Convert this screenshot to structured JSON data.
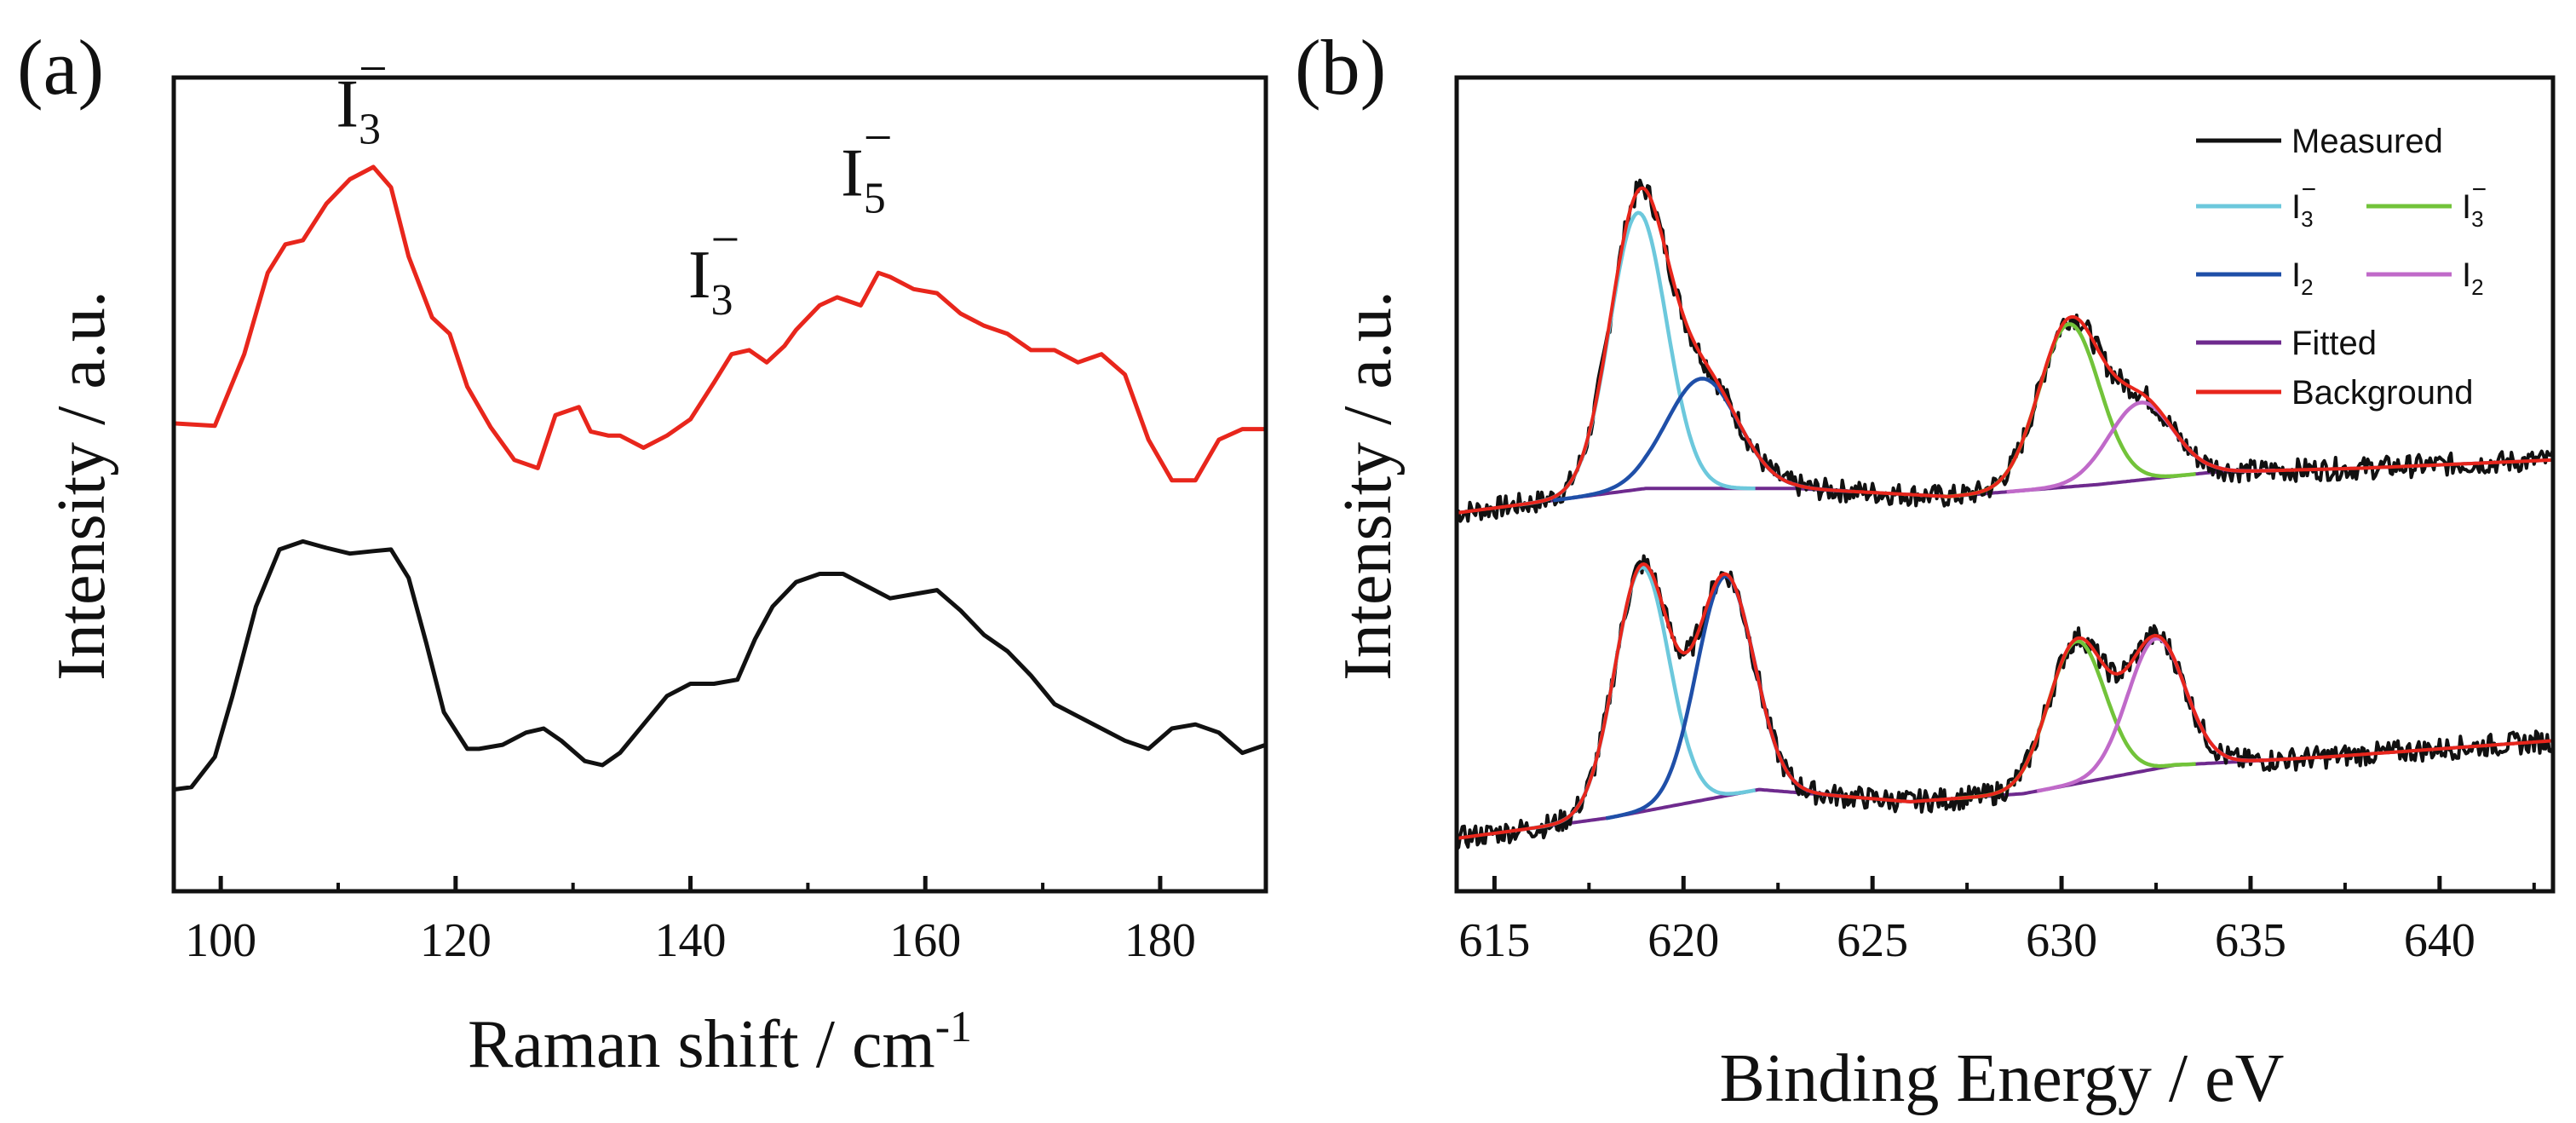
{
  "chart_data": [
    {
      "type": "line",
      "panel_label": "(a)",
      "xlabel": "Raman shift / cm",
      "xlabel_sup": "-1",
      "ylabel": "Intensity / a.u.",
      "xlim": [
        96,
        189
      ],
      "ylim": [
        0,
        1
      ],
      "xticks": [
        100,
        120,
        140,
        160,
        180
      ],
      "annotations": [
        {
          "text": "I",
          "sub": "3",
          "sup": "−",
          "x": 112,
          "y": 0.94
        },
        {
          "text": "I",
          "sub": "3",
          "sup": "−",
          "x": 142,
          "y": 0.73
        },
        {
          "text": "I",
          "sub": "5",
          "sup": "−",
          "x": 155,
          "y": 0.855
        }
      ],
      "series": [
        {
          "name": "upper",
          "color": "#e8261c",
          "x": [
            96,
            99.5,
            102,
            104,
            105.5,
            107,
            109,
            111,
            113,
            114.5,
            116,
            118,
            119.5,
            121,
            123,
            125,
            127,
            128.5,
            130.5,
            131.5,
            133,
            134,
            136,
            138,
            140,
            142,
            143.5,
            145,
            146.5,
            148,
            149,
            151,
            152.5,
            154.5,
            156,
            157,
            159,
            161,
            163,
            165,
            167,
            169,
            171,
            173,
            175,
            177,
            179,
            181,
            183,
            185,
            187,
            189
          ],
          "y": [
            0.575,
            0.572,
            0.66,
            0.76,
            0.795,
            0.8,
            0.845,
            0.875,
            0.89,
            0.865,
            0.78,
            0.705,
            0.685,
            0.62,
            0.57,
            0.53,
            0.52,
            0.585,
            0.595,
            0.565,
            0.56,
            0.56,
            0.545,
            0.56,
            0.58,
            0.625,
            0.66,
            0.665,
            0.65,
            0.67,
            0.69,
            0.72,
            0.73,
            0.72,
            0.76,
            0.755,
            0.74,
            0.735,
            0.71,
            0.695,
            0.685,
            0.665,
            0.665,
            0.65,
            0.66,
            0.635,
            0.555,
            0.505,
            0.505,
            0.555,
            0.568,
            0.568
          ]
        },
        {
          "name": "lower",
          "color": "#111111",
          "x": [
            96,
            97.5,
            99.5,
            101,
            103,
            105,
            107,
            109,
            111,
            113,
            114.5,
            116,
            117.5,
            119,
            121,
            122,
            124,
            126,
            127.5,
            129,
            131,
            132.5,
            134,
            136,
            138,
            140,
            142,
            144,
            145.5,
            147,
            149,
            151,
            153,
            155,
            157,
            159,
            161,
            163,
            165,
            167,
            169,
            171,
            173,
            175,
            177,
            179,
            181,
            183,
            185,
            187,
            189
          ],
          "y": [
            0.125,
            0.128,
            0.165,
            0.24,
            0.35,
            0.42,
            0.43,
            0.422,
            0.415,
            0.418,
            0.42,
            0.385,
            0.305,
            0.22,
            0.175,
            0.175,
            0.18,
            0.195,
            0.2,
            0.185,
            0.16,
            0.155,
            0.17,
            0.205,
            0.24,
            0.255,
            0.255,
            0.26,
            0.31,
            0.35,
            0.38,
            0.39,
            0.39,
            0.375,
            0.36,
            0.365,
            0.37,
            0.345,
            0.315,
            0.295,
            0.265,
            0.23,
            0.215,
            0.2,
            0.185,
            0.175,
            0.2,
            0.205,
            0.195,
            0.17,
            0.18
          ]
        }
      ]
    },
    {
      "type": "line",
      "panel_label": "(b)",
      "xlabel": "Binding Energy / eV",
      "ylabel": "Intensity / a.u.",
      "xlim": [
        614,
        643
      ],
      "ylim": [
        0,
        1
      ],
      "xticks": [
        615,
        620,
        625,
        630,
        635,
        640
      ],
      "legend": {
        "position": "top-right",
        "entries": [
          {
            "label": "Measured",
            "color": "#111111"
          },
          {
            "label": "I",
            "sub": "3",
            "sup": "−",
            "color": "#6cc8dc"
          },
          {
            "label": "I",
            "sub": "3",
            "sup": "−",
            "color": "#72c33a"
          },
          {
            "label": "I",
            "sub": "2",
            "color": "#1f4fa8"
          },
          {
            "label": "I",
            "sub": "2",
            "color": "#c06ac9"
          },
          {
            "label": "Fitted",
            "color": "#6e2a8e"
          },
          {
            "label": "Background",
            "color": "#e8261c"
          }
        ]
      },
      "spectra": [
        {
          "name": "upper",
          "baseline": [
            [
              614,
              0.465
            ],
            [
              619,
              0.495
            ],
            [
              623,
              0.495
            ],
            [
              627,
              0.485
            ],
            [
              631,
              0.5
            ],
            [
              634,
              0.515
            ],
            [
              638,
              0.52
            ],
            [
              643,
              0.53
            ]
          ],
          "peaks": [
            {
              "component": "I3- (left)",
              "center": 618.8,
              "width": 0.75,
              "height": 0.34,
              "color": "#6cc8dc"
            },
            {
              "component": "I2 (left)",
              "center": 620.5,
              "width": 0.95,
              "height": 0.135,
              "color": "#1f4fa8"
            },
            {
              "component": "I3- (right)",
              "center": 630.2,
              "width": 0.8,
              "height": 0.2,
              "color": "#72c33a"
            },
            {
              "component": "I2 (right)",
              "center": 632.1,
              "width": 0.85,
              "height": 0.095,
              "color": "#c06ac9"
            }
          ]
        },
        {
          "name": "lower",
          "baseline": [
            [
              614,
              0.065
            ],
            [
              618,
              0.09
            ],
            [
              622,
              0.125
            ],
            [
              626,
              0.11
            ],
            [
              629,
              0.12
            ],
            [
              633,
              0.155
            ],
            [
              637,
              0.165
            ],
            [
              643,
              0.185
            ]
          ],
          "peaks": [
            {
              "component": "I3- (left)",
              "center": 618.9,
              "width": 0.72,
              "height": 0.3,
              "color": "#6cc8dc"
            },
            {
              "component": "I2 (left)",
              "center": 621.1,
              "width": 0.75,
              "height": 0.27,
              "color": "#1f4fa8"
            },
            {
              "component": "I3- (right)",
              "center": 630.4,
              "width": 0.75,
              "height": 0.175,
              "color": "#72c33a"
            },
            {
              "component": "I2 (right)",
              "center": 632.5,
              "width": 0.75,
              "height": 0.16,
              "color": "#c06ac9"
            }
          ]
        }
      ]
    }
  ]
}
